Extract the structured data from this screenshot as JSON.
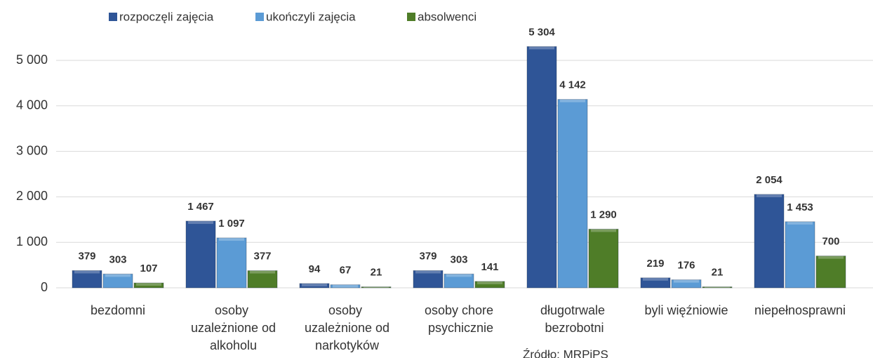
{
  "chart_data": {
    "type": "bar",
    "categories": [
      "bezdomni",
      "osoby uzależnione od alkoholu",
      "osoby uzależnione od narkotyków",
      "osoby chore psychicznie",
      "długotrwale bezrobotni",
      "byli więźniowie",
      "niepełnosprawni"
    ],
    "series": [
      {
        "name": "rozpoczęli zajęcia",
        "color": "#2f5597",
        "label_color": "#3b62aa",
        "values": [
          379,
          1467,
          94,
          379,
          5304,
          219,
          2054
        ],
        "value_labels": [
          "379",
          "1 467",
          "94",
          "379",
          "5 304",
          "219",
          "2 054"
        ]
      },
      {
        "name": "ukończyli zajęcia",
        "color": "#5b9bd5",
        "label_color": "#1f2d4d",
        "values": [
          303,
          1097,
          67,
          303,
          4142,
          176,
          1453
        ],
        "value_labels": [
          "303",
          "1 097",
          "67",
          "303",
          "4 142",
          "176",
          "1 453"
        ]
      },
      {
        "name": "absolwenci",
        "color": "#4f7d28",
        "label_color": "#5e8a2e",
        "values": [
          107,
          377,
          21,
          141,
          1290,
          21,
          700
        ],
        "value_labels": [
          "107",
          "377",
          "21",
          "141",
          "1 290",
          "21",
          "700"
        ]
      }
    ],
    "ylim": [
      0,
      5500
    ],
    "yticks": [
      0,
      {
        "value": 1000,
        "label": "1 000"
      },
      {
        "value": 2000,
        "label": "2 000"
      },
      {
        "value": 3000,
        "label": "3 000"
      },
      {
        "value": 4000,
        "label": "4 000"
      },
      {
        "value": 5000,
        "label": "5 000"
      }
    ],
    "grid": true,
    "legend": "top",
    "source": "Źródło: MRPiPS"
  }
}
